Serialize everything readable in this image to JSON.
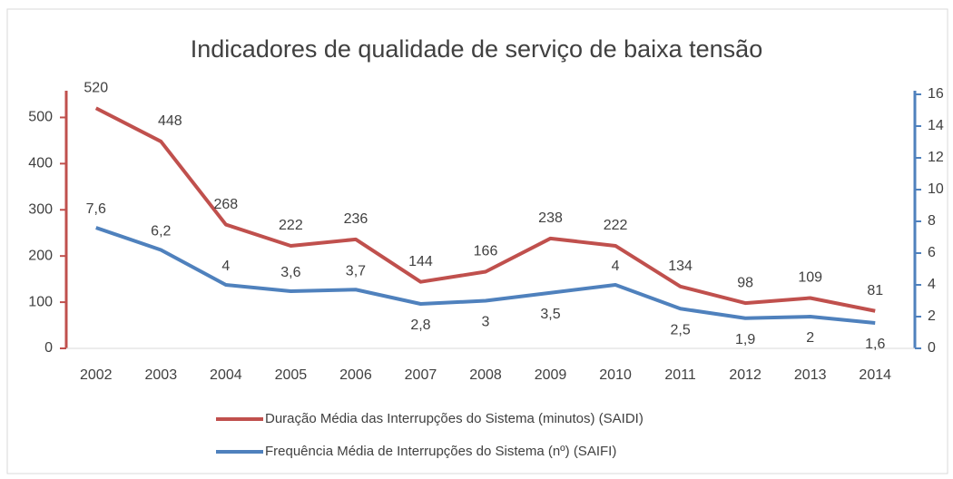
{
  "chart_data": {
    "type": "line",
    "title": "Indicadores de qualidade de serviço de baixa tensão",
    "categories": [
      "2002",
      "2003",
      "2004",
      "2005",
      "2006",
      "2007",
      "2008",
      "2009",
      "2010",
      "2011",
      "2012",
      "2013",
      "2014"
    ],
    "series": [
      {
        "name": "Duração Média das Interrupções do Sistema (minutos) (SAIDI)",
        "color": "#c0504d",
        "values": [
          520,
          448,
          268,
          222,
          236,
          144,
          166,
          238,
          222,
          134,
          98,
          109,
          81
        ]
      },
      {
        "name": "Frequência Média de Interrupções do Sistema (nº) (SAIFI)",
        "color": "#4f81bd",
        "axis": "y2",
        "values": [
          7.6,
          6.2,
          4,
          3.6,
          3.7,
          2.8,
          3,
          3.5,
          4,
          2.5,
          1.9,
          2,
          1.6
        ],
        "value_labels": [
          "7,6",
          "6,2",
          "4",
          "3,6",
          "3,7",
          "2,8",
          "3",
          "3,5",
          "4",
          "2,5",
          "1,9",
          "2",
          "1,6"
        ]
      }
    ],
    "ylim": [
      0,
      550
    ],
    "yticks": [
      0,
      100,
      200,
      300,
      400,
      500
    ],
    "y2lim": [
      0,
      16
    ],
    "y2ticks": [
      0,
      2,
      4,
      6,
      8,
      10,
      12,
      14,
      16
    ],
    "legend": "bottom"
  }
}
